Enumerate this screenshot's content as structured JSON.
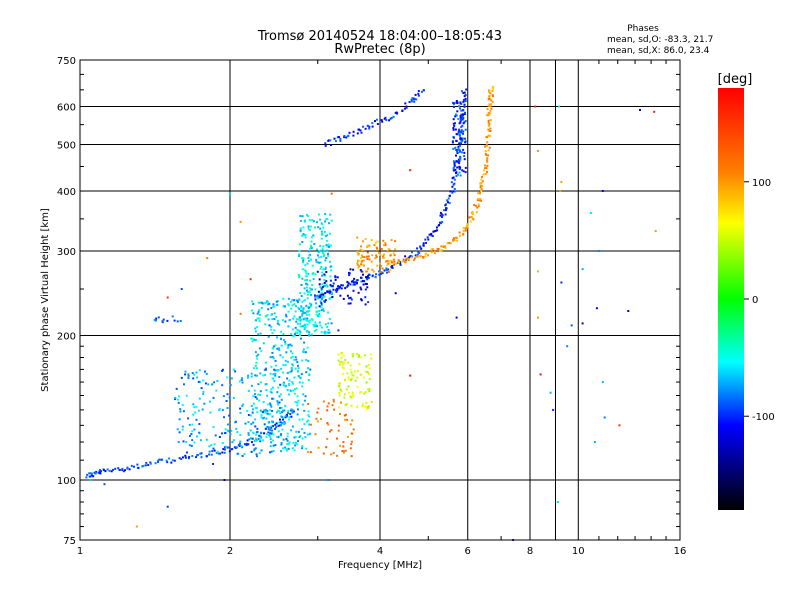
{
  "chart_data": {
    "type": "scatter",
    "title": "Tromsø 20140524 18:04:00–18:05:43",
    "subtitle": "RwPretec (8p)",
    "xlabel": "Frequency [MHz]",
    "ylabel": "Stationary phase Virtual Height [km]",
    "x_scale": "log",
    "y_scale": "log",
    "xlim": [
      1,
      16
    ],
    "ylim": [
      75,
      750
    ],
    "x_ticks": [
      1,
      2,
      4,
      6,
      8,
      10,
      16
    ],
    "x_tick_labels": [
      "1",
      "2",
      "4",
      "6",
      "8",
      "10",
      "16"
    ],
    "y_ticks": [
      75,
      100,
      200,
      300,
      400,
      500,
      600,
      750
    ],
    "y_tick_labels": [
      "75",
      "100",
      "200",
      "300",
      "400",
      "500",
      "600",
      "750"
    ],
    "grid": true,
    "legend": {
      "title": "Phases",
      "lines": [
        "mean, sd,O: -83.3, 21.7",
        "mean, sd,X: 86.0, 23.4"
      ],
      "position": "top-right"
    },
    "colorbar": {
      "label": "[deg]",
      "min": -180,
      "max": 180,
      "ticks": [
        100,
        0,
        -100
      ],
      "tick_labels": [
        "100",
        "0",
        "-100"
      ],
      "colors": [
        "#ff0000",
        "#ff8000",
        "#ffff00",
        "#00ff00",
        "#00ffff",
        "#0000ff",
        "#000000"
      ]
    },
    "traces": [
      {
        "kind": "curve",
        "points": [
          [
            1.03,
            102
          ],
          [
            1.1,
            104
          ],
          [
            1.25,
            106
          ],
          [
            1.45,
            109
          ],
          [
            1.7,
            112
          ],
          [
            1.95,
            115
          ],
          [
            2.2,
            120
          ],
          [
            2.5,
            130
          ],
          [
            2.7,
            140
          ]
        ],
        "n": 140,
        "spread": 2.5,
        "phase": -95
      },
      {
        "kind": "curve",
        "points": [
          [
            2.95,
            240
          ],
          [
            3.3,
            250
          ],
          [
            3.7,
            262
          ],
          [
            4.2,
            276
          ],
          [
            4.8,
            300
          ],
          [
            5.3,
            345
          ],
          [
            5.6,
            400
          ],
          [
            5.75,
            480
          ],
          [
            5.85,
            560
          ],
          [
            5.9,
            650
          ]
        ],
        "n": 210,
        "spread": 2.5,
        "phase": -100
      },
      {
        "kind": "curve",
        "points": [
          [
            4.2,
            283
          ],
          [
            4.8,
            292
          ],
          [
            5.4,
            305
          ],
          [
            6.0,
            335
          ],
          [
            6.3,
            380
          ],
          [
            6.5,
            440
          ],
          [
            6.6,
            520
          ],
          [
            6.65,
            600
          ],
          [
            6.7,
            660
          ]
        ],
        "n": 170,
        "spread": 2.5,
        "phase": 100
      },
      {
        "kind": "curve",
        "points": [
          [
            3.1,
            500
          ],
          [
            3.4,
            520
          ],
          [
            3.8,
            545
          ],
          [
            4.2,
            570
          ],
          [
            4.6,
            610
          ],
          [
            4.9,
            650
          ]
        ],
        "n": 70,
        "spread": 2.5,
        "phase": -100
      },
      {
        "kind": "cloud",
        "xrange": [
          2.2,
          2.9
        ],
        "yrange": [
          115,
          240
        ],
        "n": 420,
        "phase": -60
      },
      {
        "kind": "cloud",
        "xrange": [
          1.55,
          2.6
        ],
        "yrange": [
          112,
          170
        ],
        "n": 220,
        "phase": -75
      },
      {
        "kind": "cloud",
        "xrange": [
          2.75,
          3.2
        ],
        "yrange": [
          200,
          360
        ],
        "n": 260,
        "phase": -55
      },
      {
        "kind": "cloud",
        "xrange": [
          2.85,
          3.55
        ],
        "yrange": [
          112,
          150
        ],
        "n": 55,
        "phase": 115
      },
      {
        "kind": "cloud",
        "xrange": [
          3.3,
          3.85
        ],
        "yrange": [
          140,
          185
        ],
        "n": 95,
        "phase": 55
      },
      {
        "kind": "cloud",
        "xrange": [
          3.6,
          4.3
        ],
        "yrange": [
          270,
          320
        ],
        "n": 90,
        "phase": 100
      },
      {
        "kind": "cloud",
        "xrange": [
          3.0,
          3.8
        ],
        "yrange": [
          230,
          275
        ],
        "n": 70,
        "phase": -115
      },
      {
        "kind": "cloud",
        "xrange": [
          1.4,
          1.6
        ],
        "yrange": [
          212,
          220
        ],
        "n": 12,
        "phase": -95
      },
      {
        "kind": "cloud",
        "xrange": [
          5.6,
          5.95
        ],
        "yrange": [
          430,
          620
        ],
        "n": 90,
        "phase": -95
      },
      {
        "kind": "scatter",
        "points": [
          [
            1.05,
            100,
            -60
          ],
          [
            1.12,
            98,
            -90
          ],
          [
            1.3,
            80,
            100
          ],
          [
            1.5,
            88,
            -95
          ],
          [
            1.85,
            108,
            -100
          ],
          [
            1.95,
            100,
            -120
          ],
          [
            2.0,
            395,
            -60
          ],
          [
            2.1,
            345,
            100
          ],
          [
            2.2,
            262,
            160
          ],
          [
            1.8,
            290,
            110
          ],
          [
            1.5,
            240,
            150
          ],
          [
            1.6,
            250,
            -90
          ],
          [
            2.1,
            222,
            120
          ],
          [
            2.4,
            210,
            -90
          ],
          [
            3.2,
            395,
            120
          ],
          [
            3.6,
            320,
            100
          ],
          [
            3.3,
            205,
            -100
          ],
          [
            3.15,
            100,
            -80
          ],
          [
            4.6,
            442,
            160
          ],
          [
            4.6,
            165,
            170
          ],
          [
            5.7,
            218,
            -110
          ],
          [
            4.3,
            245,
            -120
          ],
          [
            7.4,
            75,
            -100
          ],
          [
            8.2,
            600,
            160
          ],
          [
            8.3,
            485,
            100
          ],
          [
            8.3,
            272,
            90
          ],
          [
            8.3,
            218,
            100
          ],
          [
            8.4,
            166,
            170
          ],
          [
            8.8,
            152,
            -70
          ],
          [
            8.9,
            140,
            -100
          ],
          [
            9.15,
            600,
            -60
          ],
          [
            9.2,
            400,
            100
          ],
          [
            9.25,
            418,
            100
          ],
          [
            9.1,
            90,
            -60
          ],
          [
            9.25,
            258,
            -100
          ],
          [
            9.5,
            190,
            -80
          ],
          [
            9.7,
            210,
            -90
          ],
          [
            10.2,
            275,
            -70
          ],
          [
            10.2,
            212,
            -120
          ],
          [
            10.6,
            360,
            -60
          ],
          [
            10.8,
            120,
            -70
          ],
          [
            10.9,
            228,
            -110
          ],
          [
            11.0,
            300,
            -80
          ],
          [
            11.2,
            400,
            -110
          ],
          [
            11.2,
            160,
            -70
          ],
          [
            11.3,
            135,
            -80
          ],
          [
            12.1,
            130,
            150
          ],
          [
            12.6,
            225,
            -110
          ],
          [
            13.3,
            590,
            -110
          ],
          [
            14.2,
            585,
            160
          ],
          [
            14.3,
            330,
            100
          ]
        ]
      }
    ]
  }
}
